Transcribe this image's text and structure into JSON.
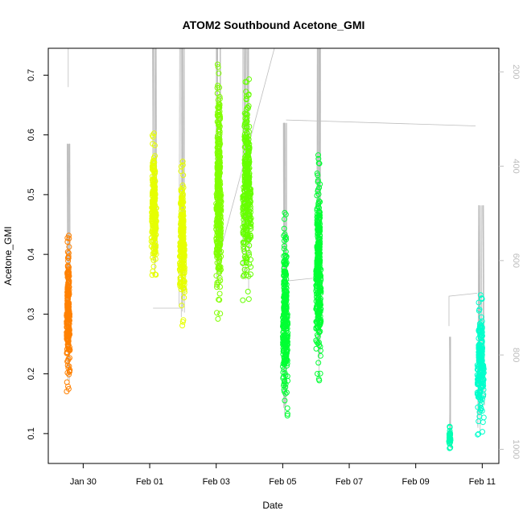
{
  "chart_data": {
    "type": "scatter",
    "title": "ATOM2 Southbound Acetone_GMI",
    "xlabel": "Date",
    "ylabel": "Acetone_GMI",
    "x_ticks": [
      {
        "day": 29.5,
        "label": "Jan 30"
      },
      {
        "day": 31.5,
        "label": "Feb 01"
      },
      {
        "day": 33.5,
        "label": "Feb 03"
      },
      {
        "day": 35.5,
        "label": "Feb 05"
      },
      {
        "day": 37.5,
        "label": "Feb 07"
      },
      {
        "day": 39.5,
        "label": "Feb 09"
      },
      {
        "day": 41.5,
        "label": "Feb 11"
      }
    ],
    "xlim_days": [
      28.45,
      42.0
    ],
    "y_ticks": [
      0.1,
      0.2,
      0.3,
      0.4,
      0.5,
      0.6,
      0.7
    ],
    "ylim": [
      0.05,
      0.745
    ],
    "y2_ticks": [
      200,
      400,
      600,
      800,
      1000
    ],
    "y2lim": [
      1030,
      150
    ],
    "y2_note": "secondary axis (pressure-like) drawn in gray; gray line traces flight altitude profile",
    "gray_color": "#bdbdbd",
    "series": [
      {
        "day_range": [
          29.0,
          29.1
        ],
        "y_range": [
          0.168,
          0.435
        ],
        "color": "#FF8000"
      },
      {
        "day_range": [
          31.55,
          31.7
        ],
        "y_range": [
          0.355,
          0.605
        ],
        "color": "#E6FF00"
      },
      {
        "day_range": [
          32.4,
          32.55
        ],
        "y_range": [
          0.28,
          0.56
        ],
        "color": "#E6FF00"
      },
      {
        "day_range": [
          33.5,
          33.65
        ],
        "y_range": [
          0.29,
          0.72
        ],
        "color": "#80FF00"
      },
      {
        "day_range": [
          34.3,
          34.55
        ],
        "y_range": [
          0.32,
          0.705
        ],
        "color": "#66FF00"
      },
      {
        "day_range": [
          35.5,
          35.65
        ],
        "y_range": [
          0.13,
          0.47
        ],
        "color": "#00FF33"
      },
      {
        "day_range": [
          36.5,
          36.65
        ],
        "y_range": [
          0.185,
          0.57
        ],
        "color": "#00FF33"
      },
      {
        "day_range": [
          40.5,
          40.55
        ],
        "y_range": [
          0.075,
          0.112
        ],
        "color": "#00FFB3"
      },
      {
        "day_range": [
          41.35,
          41.55
        ],
        "y_range": [
          0.098,
          0.332
        ],
        "color": "#00FFCC"
      }
    ]
  }
}
